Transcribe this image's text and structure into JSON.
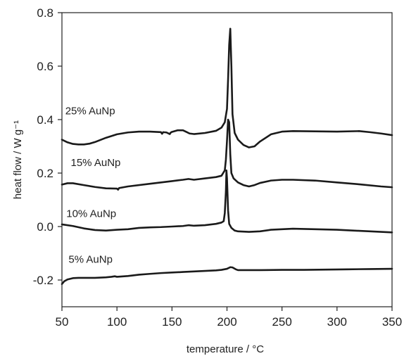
{
  "chart_data": {
    "type": "line",
    "xlabel": "temperature / °C",
    "ylabel": "heat flow / W g⁻¹",
    "xlim": [
      50,
      350
    ],
    "ylim": [
      -0.3,
      0.8
    ],
    "x_ticks": [
      50,
      100,
      150,
      200,
      250,
      300,
      350
    ],
    "y_ticks": [
      -0.2,
      0.0,
      0.2,
      0.4,
      0.6,
      0.8
    ],
    "y_tick_labels": [
      "-0.2",
      "0.0",
      "0.2",
      "0.4",
      "0.6",
      "0.8"
    ],
    "grid": false,
    "legend": "none",
    "series": [
      {
        "name": "25% AuNp",
        "label_at": [
          53,
          0.42
        ],
        "x": [
          50,
          55,
          60,
          65,
          70,
          75,
          80,
          90,
          100,
          110,
          120,
          130,
          140,
          141,
          142,
          145,
          148,
          149,
          150,
          155,
          160,
          163,
          166,
          170,
          180,
          190,
          195,
          198,
          200,
          201,
          202,
          203,
          204,
          205,
          207,
          210,
          215,
          220,
          225,
          230,
          240,
          250,
          260,
          280,
          300,
          320,
          330,
          340,
          350
        ],
        "y": [
          0.325,
          0.315,
          0.309,
          0.307,
          0.307,
          0.31,
          0.316,
          0.332,
          0.345,
          0.352,
          0.355,
          0.355,
          0.353,
          0.347,
          0.353,
          0.352,
          0.346,
          0.352,
          0.354,
          0.36,
          0.36,
          0.354,
          0.348,
          0.346,
          0.35,
          0.358,
          0.37,
          0.39,
          0.44,
          0.55,
          0.68,
          0.74,
          0.6,
          0.42,
          0.35,
          0.325,
          0.305,
          0.296,
          0.3,
          0.318,
          0.345,
          0.355,
          0.357,
          0.356,
          0.355,
          0.357,
          0.353,
          0.348,
          0.342
        ]
      },
      {
        "name": "15% AuNp",
        "label_at": [
          58,
          0.226
        ],
        "x": [
          50,
          55,
          60,
          70,
          80,
          90,
          100,
          101,
          102,
          110,
          130,
          150,
          160,
          165,
          170,
          180,
          190,
          195,
          198,
          199,
          200,
          201,
          202,
          203,
          204,
          206,
          210,
          215,
          220,
          225,
          230,
          240,
          250,
          260,
          280,
          300,
          320,
          340,
          350
        ],
        "y": [
          0.157,
          0.162,
          0.162,
          0.155,
          0.148,
          0.143,
          0.142,
          0.138,
          0.144,
          0.15,
          0.16,
          0.17,
          0.175,
          0.178,
          0.175,
          0.18,
          0.185,
          0.19,
          0.21,
          0.25,
          0.32,
          0.4,
          0.39,
          0.27,
          0.2,
          0.18,
          0.165,
          0.155,
          0.15,
          0.155,
          0.163,
          0.172,
          0.175,
          0.175,
          0.172,
          0.165,
          0.158,
          0.15,
          0.147
        ]
      },
      {
        "name": "10% AuNp",
        "label_at": [
          54,
          0.036
        ],
        "x": [
          50,
          60,
          70,
          80,
          90,
          100,
          110,
          120,
          130,
          140,
          150,
          160,
          165,
          170,
          180,
          190,
          195,
          197,
          198,
          199,
          199.5,
          200,
          201,
          202,
          204,
          207,
          210,
          220,
          230,
          240,
          250,
          260,
          280,
          300,
          320,
          340,
          350
        ],
        "y": [
          0.008,
          0.002,
          -0.007,
          -0.013,
          -0.015,
          -0.012,
          -0.01,
          -0.005,
          -0.003,
          -0.002,
          0.0,
          0.002,
          0.005,
          0.003,
          0.005,
          0.01,
          0.015,
          0.02,
          0.05,
          0.13,
          0.21,
          0.18,
          0.06,
          0.01,
          -0.005,
          -0.015,
          -0.018,
          -0.02,
          -0.018,
          -0.012,
          -0.01,
          -0.008,
          -0.01,
          -0.012,
          -0.016,
          -0.02,
          -0.022
        ]
      },
      {
        "name": "5% AuNp",
        "label_at": [
          56,
          -0.136
        ],
        "x": [
          50,
          52,
          55,
          58,
          60,
          65,
          70,
          80,
          90,
          95,
          98,
          100,
          110,
          120,
          130,
          140,
          150,
          160,
          170,
          180,
          190,
          195,
          200,
          203,
          205,
          208,
          210,
          220,
          230,
          250,
          270,
          290,
          310,
          330,
          350
        ],
        "y": [
          -0.215,
          -0.205,
          -0.198,
          -0.195,
          -0.193,
          -0.192,
          -0.192,
          -0.192,
          -0.19,
          -0.188,
          -0.186,
          -0.188,
          -0.185,
          -0.18,
          -0.177,
          -0.174,
          -0.172,
          -0.17,
          -0.168,
          -0.166,
          -0.164,
          -0.162,
          -0.158,
          -0.152,
          -0.153,
          -0.16,
          -0.163,
          -0.163,
          -0.163,
          -0.162,
          -0.162,
          -0.161,
          -0.16,
          -0.159,
          -0.158
        ]
      }
    ]
  }
}
